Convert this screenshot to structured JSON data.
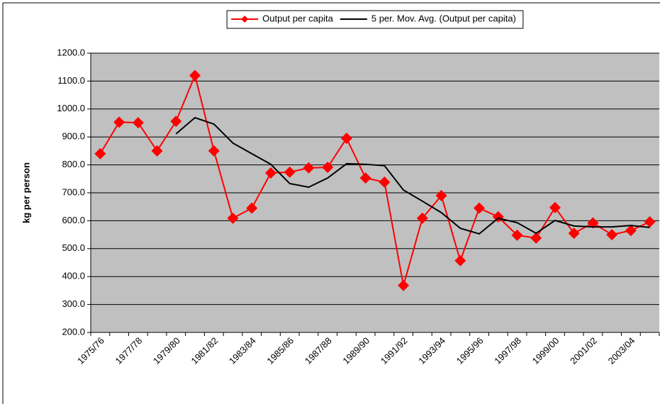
{
  "chart_data": {
    "type": "line",
    "y_label": "kg per person",
    "categories": [
      "1975/76",
      null,
      "1977/78",
      null,
      "1979/80",
      null,
      "1981/82",
      null,
      "1983/84",
      null,
      "1985/86",
      null,
      "1987/88",
      null,
      "1989/90",
      null,
      "1991/92",
      null,
      "1993/94",
      null,
      "1995/96",
      null,
      "1997/98",
      null,
      "1999/00",
      null,
      "2001/02",
      null,
      "2003/04",
      null
    ],
    "series": [
      {
        "name": "Output per capita",
        "color": "#ff0000",
        "marker": "diamond",
        "values": [
          840,
          953,
          951,
          850,
          956,
          1120,
          850,
          609,
          645,
          771,
          774,
          789,
          791,
          895,
          753,
          738,
          368,
          609,
          690,
          457,
          645,
          614,
          548,
          538,
          647,
          555,
          592,
          550,
          565,
          596
        ]
      },
      {
        "name": "5 per. Mov. Avg. (Output per capita)",
        "color": "#000000",
        "values": [
          null,
          null,
          null,
          null,
          911,
          969,
          946,
          878,
          840,
          802,
          733,
          720,
          753,
          804,
          802,
          797,
          710,
          670,
          629,
          573,
          553,
          609,
          593,
          555,
          601,
          581,
          578,
          578,
          583,
          576
        ]
      }
    ],
    "ylim": [
      200,
      1200
    ],
    "yticks": [
      {
        "value": 200,
        "label": "200.0"
      },
      {
        "value": 300,
        "label": "300.0"
      },
      {
        "value": 400,
        "label": "400.0"
      },
      {
        "value": 500,
        "label": "500.0"
      },
      {
        "value": 600,
        "label": "600.0"
      },
      {
        "value": 700,
        "label": "700.0"
      },
      {
        "value": 800,
        "label": "800.0"
      },
      {
        "value": 900,
        "label": "900.0"
      },
      {
        "value": 1000,
        "label": "1000.0"
      },
      {
        "value": 1100,
        "label": "1100.0"
      },
      {
        "value": 1200,
        "label": "1200.0"
      }
    ],
    "grid": true,
    "legend": "top"
  }
}
